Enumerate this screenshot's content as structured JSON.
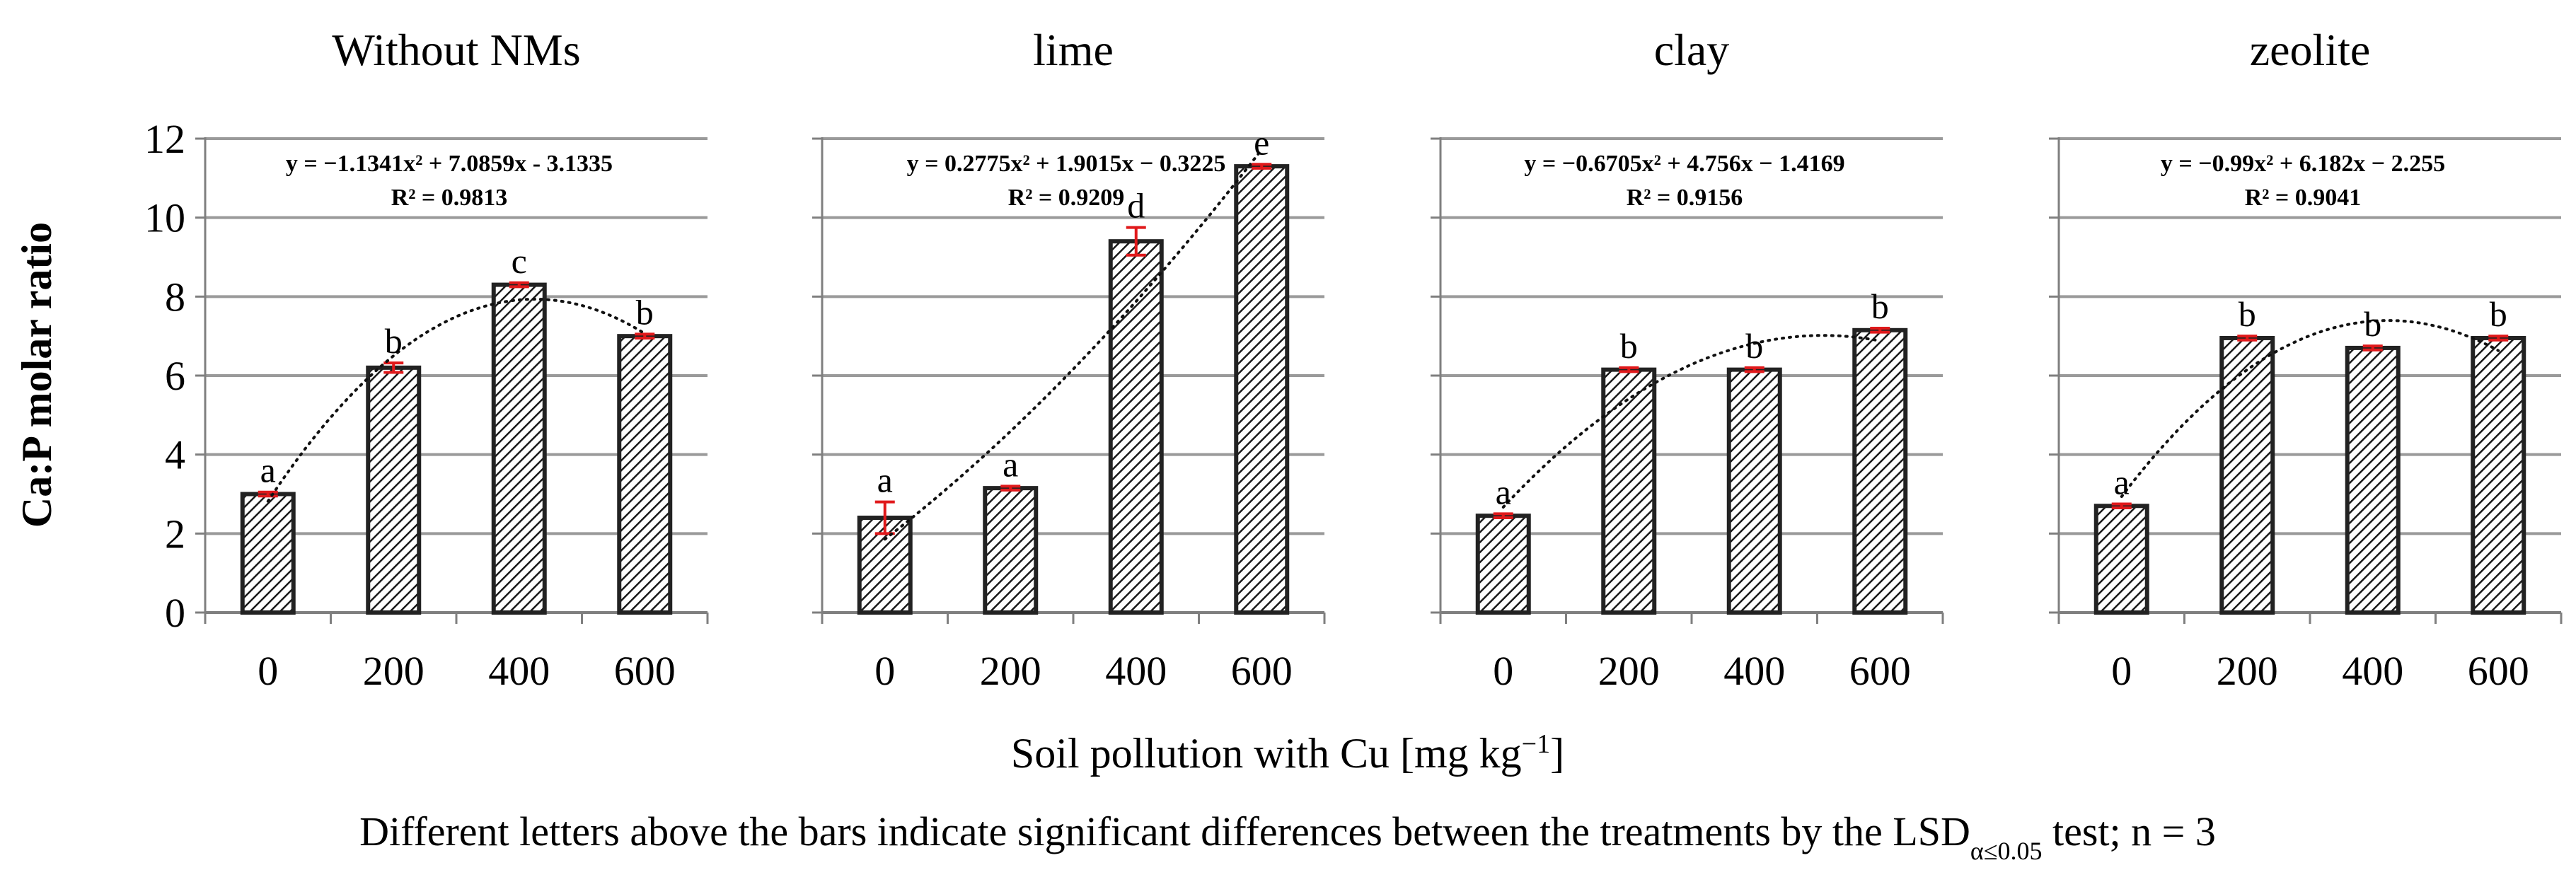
{
  "chart_data": [
    {
      "type": "bar",
      "title": "Without NMs",
      "categories": [
        "0",
        "200",
        "400",
        "600"
      ],
      "values": [
        3.0,
        6.2,
        8.3,
        7.0
      ],
      "errors": [
        0.05,
        0.12,
        0.05,
        0.05
      ],
      "letters": [
        "a",
        "b",
        "c",
        "b"
      ],
      "trendline": {
        "type": "polynomial",
        "a": -1.1341,
        "b": 7.0859,
        "c": -3.1335
      },
      "equation": "y = −1.1341x² + 7.0859x - 3.1335",
      "r2": "R² = 0.9813",
      "ylim": [
        0,
        12
      ]
    },
    {
      "type": "bar",
      "title": "lime",
      "categories": [
        "0",
        "200",
        "400",
        "600"
      ],
      "values": [
        2.4,
        3.15,
        9.4,
        11.3
      ],
      "errors": [
        0.4,
        0.05,
        0.35,
        0.05
      ],
      "letters": [
        "a",
        "a",
        "d",
        "e"
      ],
      "trendline": {
        "type": "polynomial",
        "a": 0.2775,
        "b": 1.9015,
        "c": -0.3225
      },
      "equation": "y = 0.2775x² + 1.9015x − 0.3225",
      "r2": "R² = 0.9209",
      "ylim": [
        0,
        12
      ]
    },
    {
      "type": "bar",
      "title": "clay",
      "categories": [
        "0",
        "200",
        "400",
        "600"
      ],
      "values": [
        2.45,
        6.15,
        6.15,
        7.15
      ],
      "errors": [
        0.05,
        0.05,
        0.05,
        0.05
      ],
      "letters": [
        "a",
        "b",
        "b",
        "b"
      ],
      "trendline": {
        "type": "polynomial",
        "a": -0.6705,
        "b": 4.756,
        "c": -1.4169
      },
      "equation": "y = −0.6705x² + 4.756x − 1.4169",
      "r2": "R² = 0.9156",
      "ylim": [
        0,
        12
      ]
    },
    {
      "type": "bar",
      "title": "zeolite",
      "categories": [
        "0",
        "200",
        "400",
        "600"
      ],
      "values": [
        2.7,
        6.95,
        6.7,
        6.95
      ],
      "errors": [
        0.05,
        0.05,
        0.05,
        0.05
      ],
      "letters": [
        "a",
        "b",
        "b",
        "b"
      ],
      "trendline": {
        "type": "polynomial",
        "a": -0.99,
        "b": 6.182,
        "c": -2.255
      },
      "equation": "y = −0.99x² + 6.182x − 2.255",
      "r2": "R² = 0.9041",
      "ylim": [
        0,
        12
      ]
    }
  ],
  "y_ticks": [
    "0",
    "2",
    "4",
    "6",
    "8",
    "10",
    "12"
  ],
  "ylabel": "Ca:P molar ratio",
  "xlabel": "Soil pollution with Cu [mg kg",
  "xlabel_sup": "−1",
  "xlabel_end": "]",
  "footnote_pre": "Different letters above the bars indicate significant differences between the treatments by the LSD",
  "footnote_sub": "α≤0.05",
  "footnote_post": " test; n = 3",
  "colors": {
    "bar_stroke": "#222222",
    "grid": "#9a9a9a",
    "error": "#e0191b",
    "axis": "#7f7f7f"
  }
}
